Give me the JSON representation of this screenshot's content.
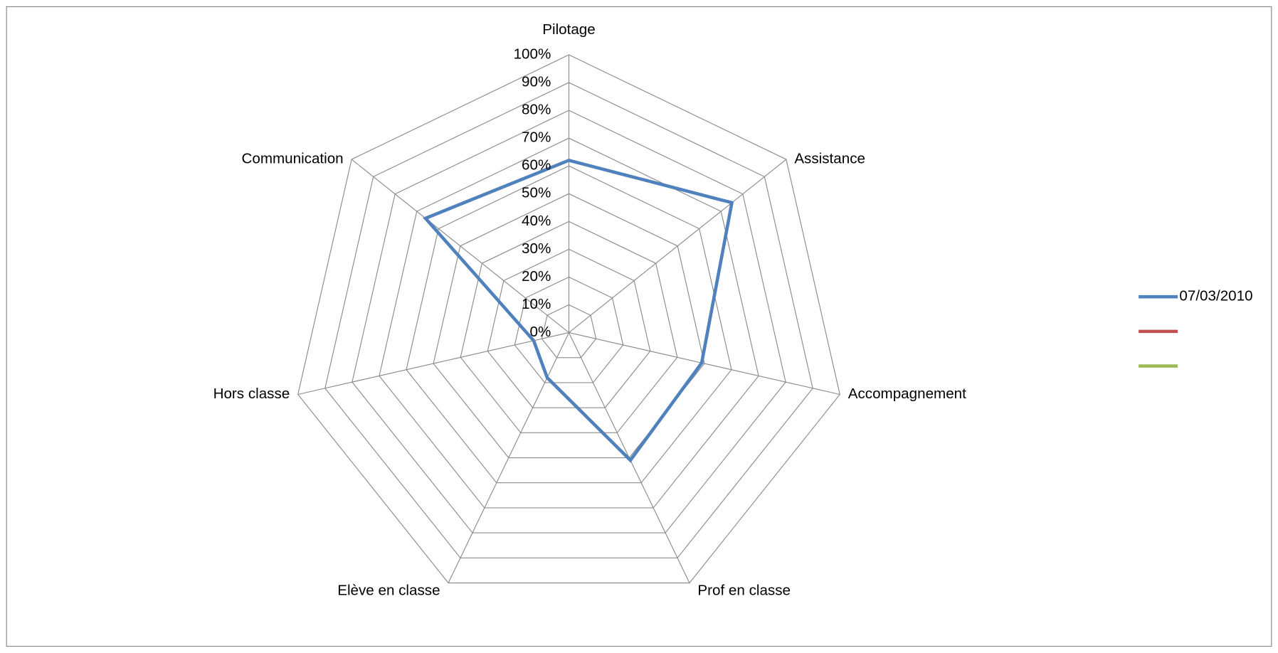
{
  "chart_data": {
    "type": "radar",
    "categories": [
      "Pilotage",
      "Assistance",
      "Accompagnement",
      "Prof en classe",
      "Elève en classe",
      "Hors classe",
      "Communication"
    ],
    "series": [
      {
        "name": "07/03/2010",
        "color": "#4f81bd",
        "values": [
          62,
          75,
          49,
          51,
          18,
          13,
          66
        ]
      },
      {
        "color": "#c0504d",
        "values": [
          null,
          null,
          null,
          null,
          null,
          null,
          null
        ]
      },
      {
        "color": "#9bbb59",
        "values": [
          null,
          null,
          null,
          null,
          null,
          null,
          null
        ]
      }
    ],
    "ylim": [
      0,
      100
    ],
    "yticks": [
      {
        "value": 0,
        "label": "0%"
      },
      {
        "value": 10,
        "label": "10%"
      },
      {
        "value": 20,
        "label": "20%"
      },
      {
        "value": 30,
        "label": "30%"
      },
      {
        "value": 40,
        "label": "40%"
      },
      {
        "value": 50,
        "label": "50%"
      },
      {
        "value": 60,
        "label": "60%"
      },
      {
        "value": 70,
        "label": "70%"
      },
      {
        "value": 80,
        "label": "80%"
      },
      {
        "value": 90,
        "label": "90%"
      },
      {
        "value": 100,
        "label": "100%"
      }
    ],
    "grid": true,
    "legend": "right"
  }
}
